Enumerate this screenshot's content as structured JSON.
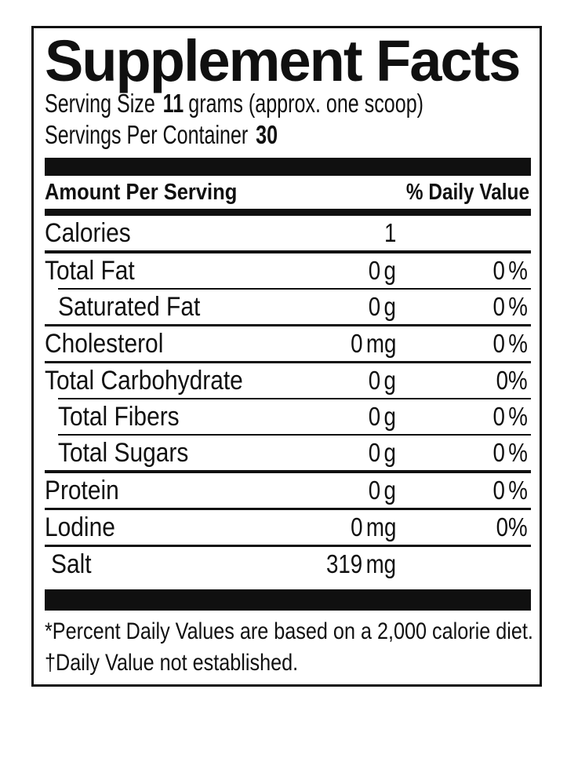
{
  "title": "Supplement Facts",
  "serving": {
    "size_label": "Serving Size",
    "size_qty": "11",
    "size_desc": "grams (approx. one scoop)",
    "per_container_label": "Servings Per Container",
    "per_container_value": "30"
  },
  "table": {
    "header": {
      "amount_per_serving": "Amount Per Serving",
      "daily_value": "% Daily Value"
    },
    "rows": [
      {
        "name": "Calories",
        "amount": "1",
        "dv": ""
      },
      {
        "name": "Total Fat",
        "amount": "0 g",
        "dv": "0 %"
      },
      {
        "name": "Saturated Fat",
        "amount": "0 g",
        "dv": "0 %",
        "indent": true
      },
      {
        "name": "Cholesterol",
        "amount": "0 mg",
        "dv": "0 %"
      },
      {
        "name": "Total Carbohydrate",
        "amount": "0 g",
        "dv": "0%"
      },
      {
        "name": "Total Fibers",
        "amount": "0 g",
        "dv": "0 %",
        "indent": true
      },
      {
        "name": "Total Sugars",
        "amount": "0 g",
        "dv": "0 %",
        "indent": true
      },
      {
        "name": "Protein",
        "amount": "0 g",
        "dv": "0 %"
      },
      {
        "name": "Lodine",
        "amount": "0 mg",
        "dv": "0%"
      },
      {
        "name": "Salt",
        "amount": "319 mg",
        "dv": ""
      }
    ]
  },
  "footnotes": {
    "percent_daily": "*Percent Daily Values are based on a 2,000 calorie diet.",
    "not_established": "†Daily Value not established."
  },
  "colors": {
    "ink": "#101010",
    "background": "#ffffff"
  }
}
